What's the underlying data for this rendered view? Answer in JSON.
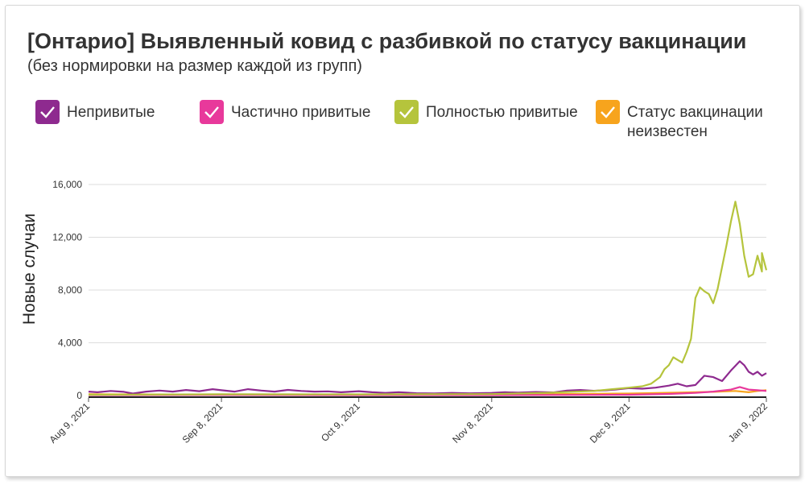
{
  "header": {
    "title": "[Онтарио] Выявленный ковид с разбивкой по статусу вакцинации",
    "subtitle": "(без нормировки на размер каждой из групп)"
  },
  "colors": {
    "unvaccinated": "#8e2a8f",
    "partial": "#e8399b",
    "full": "#b5c43c",
    "unknown": "#f7a41d"
  },
  "legend_icon": "checkmark-icon",
  "chart_data": {
    "type": "line",
    "title": "[Онтарио] Выявленный ковид с разбивкой по статусу вакцинации",
    "subtitle": "(без нормировки на размер каждой из групп)",
    "ylabel": "Новые случаи",
    "xlabel": "",
    "ylim": [
      0,
      16000
    ],
    "xlim": [
      "2021-08-09",
      "2022-01-09"
    ],
    "y_ticks": [
      0,
      4000,
      8000,
      12000,
      16000
    ],
    "y_tick_labels": [
      "0",
      "4,000",
      "8,000",
      "12,000",
      "16,000"
    ],
    "x_ticks": [
      "2021-08-09",
      "2021-09-08",
      "2021-10-09",
      "2021-11-08",
      "2021-12-09",
      "2022-01-09"
    ],
    "x_tick_labels": [
      "Aug 9, 2021",
      "Sep 8, 2021",
      "Oct 9, 2021",
      "Nov 8, 2021",
      "Dec 9, 2021",
      "Jan 9, 2022"
    ],
    "grid": true,
    "legend_position": "top",
    "series": [
      {
        "name": "Непривитые",
        "color_key": "unvaccinated",
        "points": [
          [
            "2021-08-09",
            300
          ],
          [
            "2021-08-11",
            250
          ],
          [
            "2021-08-14",
            350
          ],
          [
            "2021-08-17",
            280
          ],
          [
            "2021-08-19",
            150
          ],
          [
            "2021-08-22",
            300
          ],
          [
            "2021-08-25",
            380
          ],
          [
            "2021-08-28",
            300
          ],
          [
            "2021-08-31",
            420
          ],
          [
            "2021-09-03",
            330
          ],
          [
            "2021-09-06",
            480
          ],
          [
            "2021-09-08",
            400
          ],
          [
            "2021-09-11",
            300
          ],
          [
            "2021-09-14",
            480
          ],
          [
            "2021-09-17",
            380
          ],
          [
            "2021-09-20",
            300
          ],
          [
            "2021-09-23",
            430
          ],
          [
            "2021-09-26",
            350
          ],
          [
            "2021-09-29",
            300
          ],
          [
            "2021-10-02",
            320
          ],
          [
            "2021-10-05",
            250
          ],
          [
            "2021-10-09",
            330
          ],
          [
            "2021-10-12",
            250
          ],
          [
            "2021-10-15",
            200
          ],
          [
            "2021-10-18",
            250
          ],
          [
            "2021-10-22",
            180
          ],
          [
            "2021-10-26",
            160
          ],
          [
            "2021-10-30",
            200
          ],
          [
            "2021-11-03",
            170
          ],
          [
            "2021-11-08",
            200
          ],
          [
            "2021-11-11",
            250
          ],
          [
            "2021-11-14",
            220
          ],
          [
            "2021-11-18",
            270
          ],
          [
            "2021-11-22",
            240
          ],
          [
            "2021-11-25",
            380
          ],
          [
            "2021-11-28",
            420
          ],
          [
            "2021-12-01",
            360
          ],
          [
            "2021-12-04",
            400
          ],
          [
            "2021-12-06",
            460
          ],
          [
            "2021-12-09",
            560
          ],
          [
            "2021-12-12",
            520
          ],
          [
            "2021-12-15",
            600
          ],
          [
            "2021-12-18",
            750
          ],
          [
            "2021-12-20",
            900
          ],
          [
            "2021-12-22",
            700
          ],
          [
            "2021-12-24",
            800
          ],
          [
            "2021-12-26",
            1500
          ],
          [
            "2021-12-28",
            1400
          ],
          [
            "2021-12-30",
            1100
          ],
          [
            "2022-01-01",
            1900
          ],
          [
            "2022-01-03",
            2600
          ],
          [
            "2022-01-04",
            2300
          ],
          [
            "2022-01-05",
            1800
          ],
          [
            "2022-01-06",
            1600
          ],
          [
            "2022-01-07",
            1800
          ],
          [
            "2022-01-08",
            1500
          ],
          [
            "2022-01-09",
            1700
          ]
        ]
      },
      {
        "name": "Частично привитые",
        "color_key": "partial",
        "points": [
          [
            "2021-08-09",
            30
          ],
          [
            "2021-09-08",
            40
          ],
          [
            "2021-10-09",
            30
          ],
          [
            "2021-11-08",
            30
          ],
          [
            "2021-12-09",
            60
          ],
          [
            "2021-12-18",
            120
          ],
          [
            "2021-12-24",
            200
          ],
          [
            "2021-12-28",
            300
          ],
          [
            "2022-01-01",
            450
          ],
          [
            "2022-01-03",
            650
          ],
          [
            "2022-01-05",
            450
          ],
          [
            "2022-01-07",
            400
          ],
          [
            "2022-01-09",
            350
          ]
        ]
      },
      {
        "name": "Полностью привитые",
        "color_key": "full",
        "points": [
          [
            "2021-08-09",
            60
          ],
          [
            "2021-09-08",
            100
          ],
          [
            "2021-10-09",
            90
          ],
          [
            "2021-11-08",
            110
          ],
          [
            "2021-11-20",
            200
          ],
          [
            "2021-12-01",
            350
          ],
          [
            "2021-12-09",
            600
          ],
          [
            "2021-12-12",
            700
          ],
          [
            "2021-12-14",
            900
          ],
          [
            "2021-12-16",
            1400
          ],
          [
            "2021-12-17",
            2000
          ],
          [
            "2021-12-18",
            2300
          ],
          [
            "2021-12-19",
            2900
          ],
          [
            "2021-12-20",
            2700
          ],
          [
            "2021-12-21",
            2500
          ],
          [
            "2021-12-22",
            3300
          ],
          [
            "2021-12-23",
            4300
          ],
          [
            "2021-12-24",
            7400
          ],
          [
            "2021-12-25",
            8200
          ],
          [
            "2021-12-26",
            7900
          ],
          [
            "2021-12-27",
            7700
          ],
          [
            "2021-12-28",
            7000
          ],
          [
            "2021-12-29",
            8100
          ],
          [
            "2021-12-31",
            11400
          ],
          [
            "2022-01-01",
            13200
          ],
          [
            "2022-01-02",
            14700
          ],
          [
            "2022-01-03",
            13000
          ],
          [
            "2022-01-04",
            10600
          ],
          [
            "2022-01-05",
            9000
          ],
          [
            "2022-01-06",
            9200
          ],
          [
            "2022-01-07",
            10600
          ],
          [
            "2022-01-08",
            9400
          ],
          [
            "2022-01-08",
            10800
          ],
          [
            "2022-01-09",
            9500
          ]
        ]
      },
      {
        "name": "Статус вакцинации неизвестен",
        "color_key": "unknown",
        "points": [
          [
            "2021-08-09",
            100
          ],
          [
            "2021-09-08",
            80
          ],
          [
            "2021-10-09",
            60
          ],
          [
            "2021-11-08",
            70
          ],
          [
            "2021-12-09",
            150
          ],
          [
            "2021-12-20",
            220
          ],
          [
            "2021-12-28",
            280
          ],
          [
            "2022-01-02",
            350
          ],
          [
            "2022-01-05",
            250
          ],
          [
            "2022-01-07",
            350
          ],
          [
            "2022-01-09",
            400
          ]
        ]
      }
    ]
  }
}
